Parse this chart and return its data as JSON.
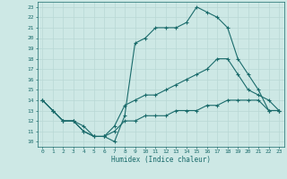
{
  "xlabel": "Humidex (Indice chaleur)",
  "bg_color": "#cde8e5",
  "line_color": "#1a6b6b",
  "grid_color": "#b8d8d5",
  "xlim": [
    -0.5,
    23.5
  ],
  "ylim": [
    9.5,
    23.5
  ],
  "xticks": [
    0,
    1,
    2,
    3,
    4,
    5,
    6,
    7,
    8,
    9,
    10,
    11,
    12,
    13,
    14,
    15,
    16,
    17,
    18,
    19,
    20,
    21,
    22,
    23
  ],
  "yticks": [
    10,
    11,
    12,
    13,
    14,
    15,
    16,
    17,
    18,
    19,
    20,
    21,
    22,
    23
  ],
  "line1_x": [
    0,
    1,
    2,
    3,
    4,
    5,
    6,
    7,
    8,
    9,
    10,
    11,
    12,
    13,
    14,
    15,
    16,
    17,
    18,
    19,
    20,
    21,
    22,
    23
  ],
  "line1_y": [
    14,
    13,
    12,
    12,
    11,
    10.5,
    10.5,
    10,
    12.5,
    19.5,
    20,
    21,
    21,
    21,
    21.5,
    23,
    22.5,
    22,
    21,
    18,
    16.5,
    15,
    13,
    13
  ],
  "line2_x": [
    0,
    1,
    2,
    3,
    4,
    5,
    6,
    7,
    8,
    9,
    10,
    11,
    12,
    13,
    14,
    15,
    16,
    17,
    18,
    19,
    20,
    21,
    22,
    23
  ],
  "line2_y": [
    14,
    13,
    12,
    12,
    11.5,
    10.5,
    10.5,
    11.5,
    13.5,
    14,
    14.5,
    14.5,
    15,
    15.5,
    16,
    16.5,
    17,
    18,
    18,
    16.5,
    15,
    14.5,
    14,
    13
  ],
  "line3_x": [
    0,
    1,
    2,
    3,
    4,
    5,
    6,
    7,
    8,
    9,
    10,
    11,
    12,
    13,
    14,
    15,
    16,
    17,
    18,
    19,
    20,
    21,
    22,
    23
  ],
  "line3_y": [
    14,
    13,
    12,
    12,
    11,
    10.5,
    10.5,
    11,
    12,
    12,
    12.5,
    12.5,
    12.5,
    13,
    13,
    13,
    13.5,
    13.5,
    14,
    14,
    14,
    14,
    13,
    13
  ]
}
